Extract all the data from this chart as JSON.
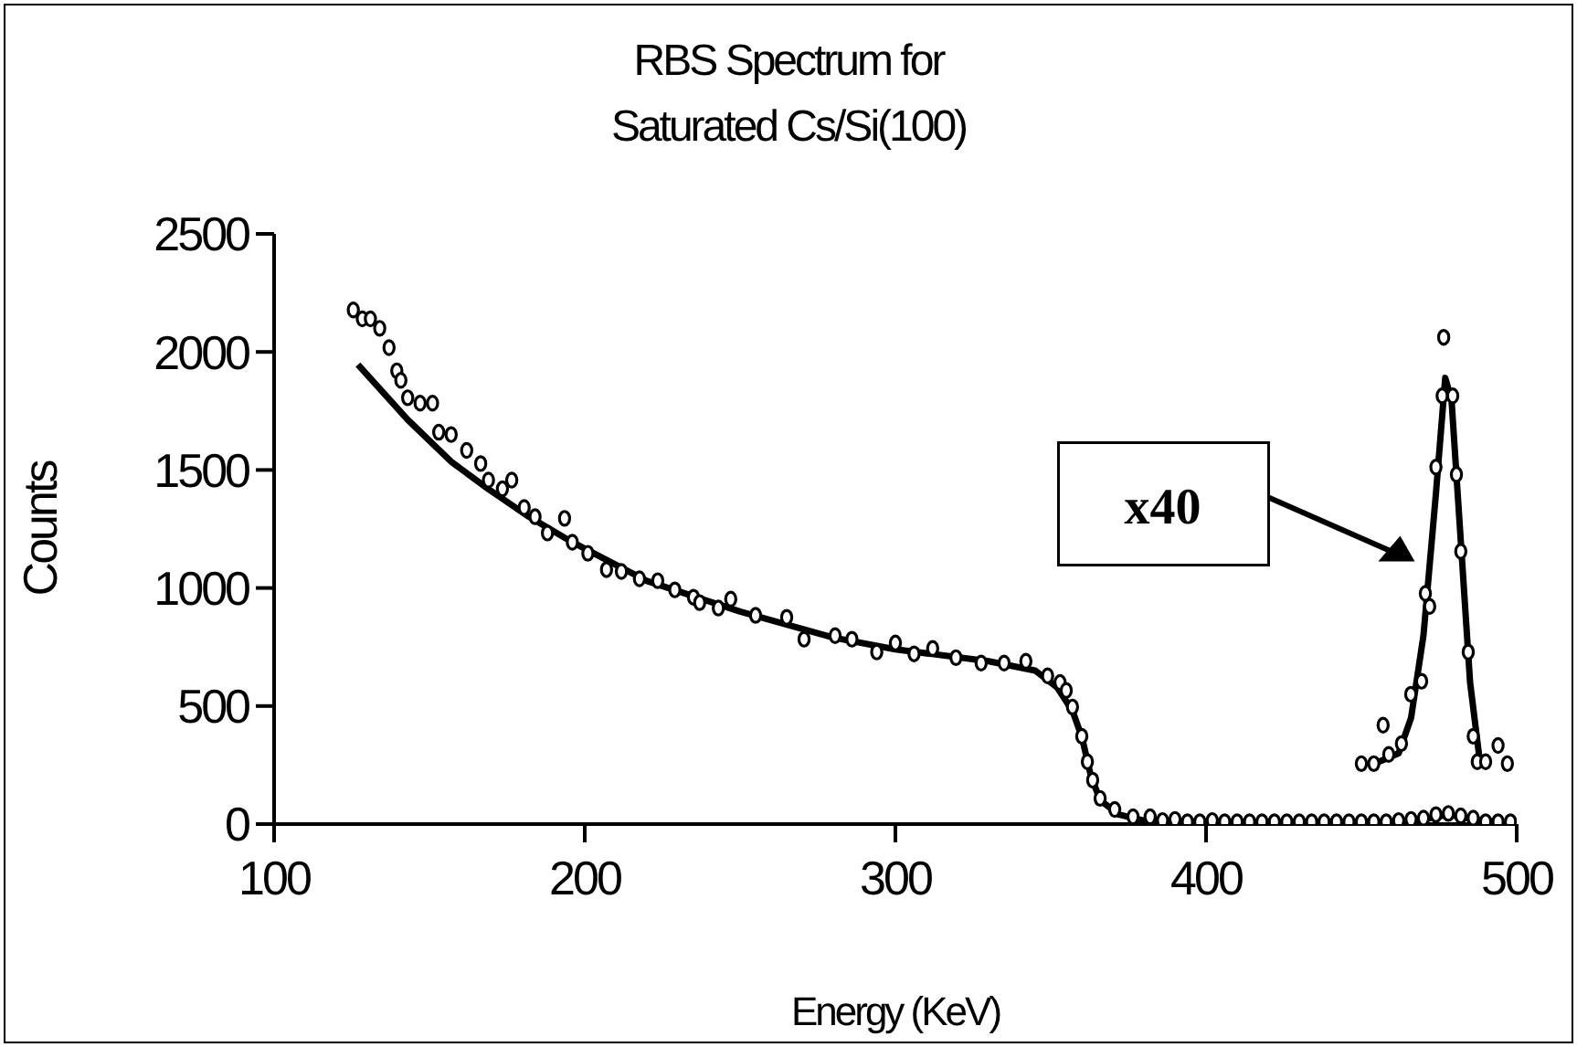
{
  "chart_data": {
    "type": "scatter",
    "title": "RBS Spectrum for\nSaturated Cs/Si(100)",
    "xlabel": "Energy (KeV)",
    "ylabel": "Counts",
    "xlim": [
      100,
      500
    ],
    "xticks": [
      100,
      200,
      300,
      400,
      500
    ],
    "ylim": [
      0,
      2500
    ],
    "yticks": [
      0,
      500,
      1000,
      1500,
      2000,
      2500
    ],
    "annotations": [
      "x40"
    ],
    "series": [
      {
        "marker": "circle",
        "color": "#000000",
        "x": [
          125.5,
          128.4,
          131,
          134,
          137,
          139.5,
          140.8,
          143,
          147,
          151,
          153,
          157,
          162,
          166.5,
          169,
          173.5,
          176.5,
          180.5,
          184,
          188,
          193.5,
          196,
          201,
          207,
          211.8,
          217.6,
          223.5,
          229,
          235,
          237,
          243,
          247,
          255,
          265,
          270.6,
          280.6,
          286,
          294,
          300,
          306,
          312,
          319.5,
          327.6,
          335,
          342,
          349,
          353,
          355,
          357,
          360,
          361.8,
          363.5,
          365.9,
          370.6,
          376.5,
          382,
          386,
          390,
          394,
          398,
          402,
          406,
          410,
          414,
          418,
          422,
          426,
          430,
          434,
          438,
          442,
          446,
          450,
          454,
          458,
          462,
          466,
          470,
          474,
          478,
          482,
          486,
          490,
          494,
          498
        ],
        "values": [
          2178,
          2140,
          2140,
          2100,
          2018,
          1920,
          1880,
          1806,
          1783,
          1783,
          1660,
          1650,
          1583,
          1527,
          1457,
          1420,
          1457,
          1341,
          1302,
          1233,
          1295,
          1194,
          1147,
          1078,
          1070,
          1039,
          1031,
          992,
          961,
          938,
          915,
          953,
          884,
          876,
          783,
          798,
          783,
          729,
          767,
          721,
          744,
          705,
          682,
          682,
          690,
          628,
          600,
          566,
          496,
          372,
          264,
          186,
          109,
          62,
          31,
          31,
          15,
          20,
          10,
          10,
          15,
          10,
          10,
          10,
          10,
          10,
          10,
          10,
          10,
          10,
          10,
          10,
          10,
          10,
          10,
          15,
          20,
          25,
          40,
          45,
          35,
          25,
          10,
          10,
          10
        ]
      },
      {
        "type": "line",
        "color": "#000000",
        "x": [
          127,
          143,
          157,
          169,
          182,
          196,
          220,
          250,
          280,
          300,
          330,
          345,
          352,
          357,
          360,
          363,
          366,
          372,
          380,
          400,
          460,
          470,
          478,
          486,
          495
        ],
        "values": [
          1946,
          1713,
          1535,
          1419,
          1302,
          1194,
          1030,
          900,
          790,
          740,
          690,
          650,
          580,
          480,
          370,
          200,
          100,
          40,
          15,
          10,
          10,
          20,
          40,
          20,
          10
        ]
      },
      {
        "marker": "circle",
        "color": "#000000",
        "x": [
          450,
          454,
          457,
          458.8,
          462.9,
          465.9,
          469.4,
          470.6,
          472,
          474,
          476,
          476.5,
          479.4,
          480.6,
          482,
          484.4,
          486,
          487.3,
          490,
          494,
          497
        ],
        "values": [
          256,
          256,
          419,
          295,
          341,
          550,
          605,
          977,
          922,
          1512,
          1814,
          2062,
          1814,
          1481,
          1155,
          729,
          372,
          264,
          264,
          333,
          256
        ]
      },
      {
        "type": "line",
        "color": "#000000",
        "x": [
          455,
          462,
          466,
          470,
          474,
          477,
          479,
          482,
          485,
          488
        ],
        "values": [
          260,
          300,
          450,
          800,
          1400,
          1890,
          1800,
          1200,
          600,
          280
        ]
      }
    ]
  }
}
